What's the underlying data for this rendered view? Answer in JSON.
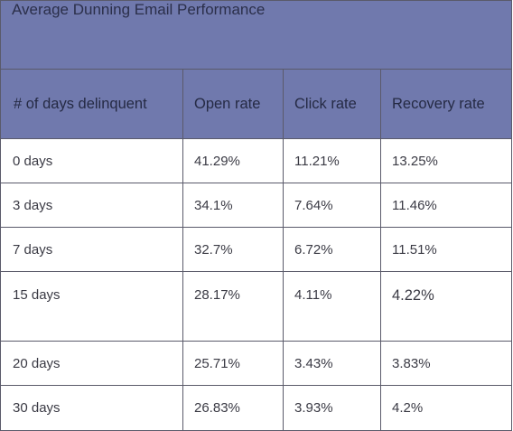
{
  "table": {
    "title": "Average Dunning Email Performance",
    "headers": [
      "# of days delinquent",
      "Open rate",
      "Click rate",
      "Recovery rate"
    ],
    "rows": [
      [
        "0 days",
        "41.29%",
        "11.21%",
        "13.25%"
      ],
      [
        "3 days",
        "34.1%",
        "7.64%",
        "11.46%"
      ],
      [
        "7 days",
        "32.7%",
        "6.72%",
        "11.51%"
      ],
      [
        "15 days",
        "28.17%",
        "4.11%",
        "4.22%"
      ],
      [
        "20 days",
        "25.71%",
        "3.43%",
        "3.83%"
      ],
      [
        "30 days",
        "26.83%",
        "3.93%",
        "4.2%"
      ]
    ]
  }
}
